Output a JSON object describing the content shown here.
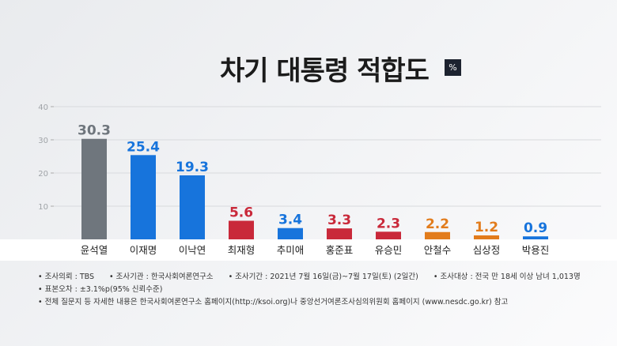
{
  "title": "차기 대통령 적합도",
  "unit": "%",
  "chart_data": {
    "type": "bar",
    "title": "차기 대통령 적합도",
    "unit": "%",
    "categories": [
      "윤석열",
      "이재명",
      "이낙연",
      "최재형",
      "추미애",
      "홍준표",
      "유승민",
      "안철수",
      "심상정",
      "박용진"
    ],
    "values": [
      30.3,
      25.4,
      19.3,
      5.6,
      3.4,
      3.3,
      2.3,
      2.2,
      1.2,
      0.9
    ],
    "value_labels": [
      "30.3",
      "25.4",
      "19.3",
      "5.6",
      "3.4",
      "3.3",
      "2.3",
      "2.2",
      "1.2",
      "0.9"
    ],
    "colors": [
      "#6f767d",
      "#1774dc",
      "#1774dc",
      "#c9293a",
      "#1774dc",
      "#c9293a",
      "#c9293a",
      "#e27c1c",
      "#e27c1c",
      "#1774dc"
    ],
    "yticks": [
      "10",
      "20",
      "30",
      "40"
    ],
    "ytick_values": [
      10,
      20,
      30,
      40
    ],
    "ylim": [
      0,
      40
    ],
    "grid": true
  },
  "notes": {
    "line1": [
      "• 조사의뢰 : TBS",
      "• 조사기관 : 한국사회여론연구소",
      "• 조사기간 : 2021년 7월 16일(금)~7월 17일(토) (2일간)",
      "• 조사대상 : 전국 만 18세 이상 남녀 1,013명"
    ],
    "line2": "• 표본오차 : ±3.1%p(95% 신뢰수준)",
    "line3": "• 전체 질문지 등 자세한 내용은 한국사회여론연구소 홈페이지(http://ksoi.org)나 중앙선거여론조사심의위원회 홈페이지 (www.nesdc.go.kr) 참고"
  }
}
